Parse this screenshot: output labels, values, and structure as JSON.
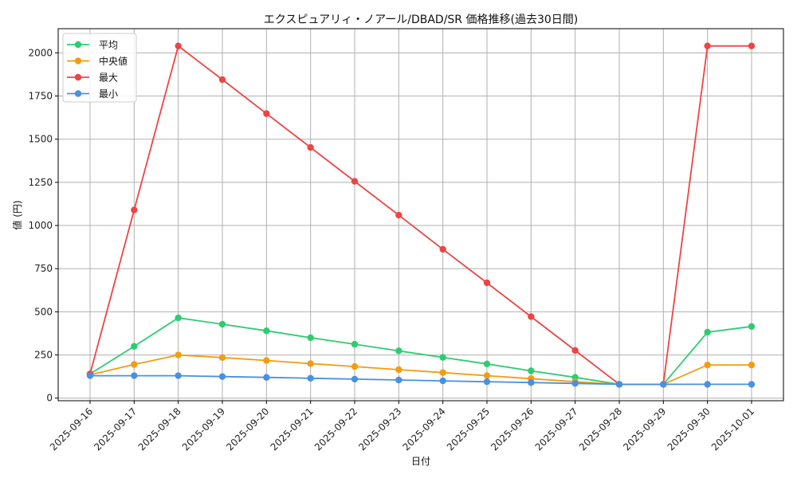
{
  "chart_data": {
    "type": "line",
    "title": "エクスピュアリィ・ノアール/DBAD/SR 価格推移(過去30日間)",
    "xlabel": "日付",
    "ylabel": "値 (円)",
    "ylim": [
      -15,
      2140
    ],
    "yticks": [
      0,
      250,
      500,
      750,
      1000,
      1250,
      1500,
      1750,
      2000
    ],
    "grid": true,
    "legend_position": "top-left",
    "categories": [
      "2025-09-16",
      "2025-09-17",
      "2025-09-18",
      "2025-09-19",
      "2025-09-20",
      "2025-09-21",
      "2025-09-22",
      "2025-09-23",
      "2025-09-24",
      "2025-09-25",
      "2025-09-26",
      "2025-09-27",
      "2025-09-28",
      "2025-09-29",
      "2025-09-30",
      "2025-10-01"
    ],
    "series": [
      {
        "name": "平均",
        "color": "#2ecc71",
        "values": [
          140,
          300,
          465,
          428,
          390,
          350,
          312,
          274,
          236,
          198,
          158,
          120,
          80,
          80,
          382,
          415
        ]
      },
      {
        "name": "中央値",
        "color": "#f39c12",
        "values": [
          135,
          195,
          250,
          235,
          218,
          200,
          183,
          165,
          148,
          130,
          113,
          95,
          80,
          80,
          192,
          192
        ]
      },
      {
        "name": "最大",
        "color": "#ef4444",
        "values": [
          140,
          1090,
          2040,
          1845,
          1648,
          1452,
          1256,
          1060,
          862,
          668,
          472,
          276,
          80,
          80,
          2040,
          2040
        ]
      },
      {
        "name": "最小",
        "color": "#4a90e2",
        "values": [
          130,
          130,
          130,
          125,
          120,
          115,
          110,
          105,
          100,
          95,
          90,
          85,
          80,
          80,
          80,
          80
        ]
      }
    ]
  }
}
